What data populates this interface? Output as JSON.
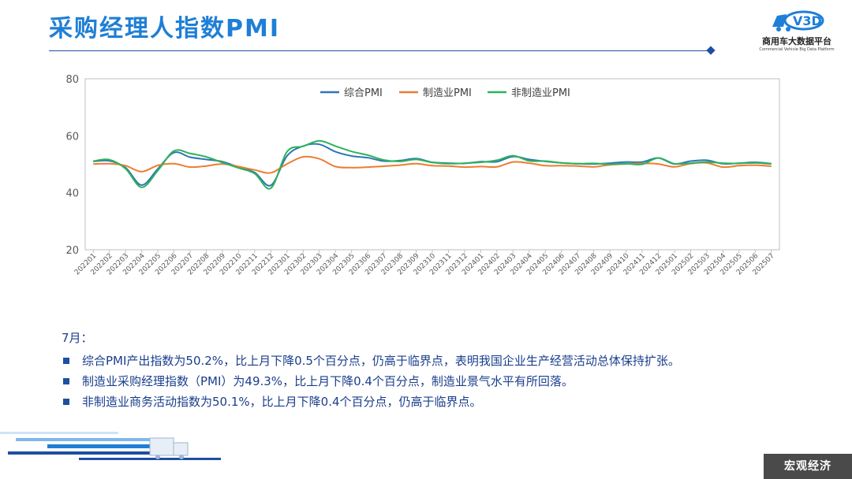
{
  "header": {
    "title": "采购经理人指数PMI",
    "logo_name": "商用车大数据平台",
    "logo_sub": "Commercial Vehicle Big Data Platform"
  },
  "chart_data": {
    "type": "line",
    "title": "",
    "xlabel": "",
    "ylabel": "",
    "ylim": [
      20,
      80
    ],
    "yticks": [
      20,
      40,
      60,
      80
    ],
    "grid": false,
    "legend": "top-center",
    "categories": [
      "202201",
      "202202",
      "202203",
      "202204",
      "202205",
      "202206",
      "202207",
      "202208",
      "202209",
      "202210",
      "202211",
      "202212",
      "202301",
      "202302",
      "202303",
      "202304",
      "202305",
      "202306",
      "202307",
      "202308",
      "202309",
      "202310",
      "202311",
      "202312",
      "202401",
      "202402",
      "202403",
      "202404",
      "202405",
      "202406",
      "202407",
      "202408",
      "202409",
      "202410",
      "202411",
      "202412",
      "202501",
      "202502",
      "202503",
      "202504",
      "202505",
      "202506",
      "202507"
    ],
    "series": [
      {
        "name": "综合PMI",
        "color": "#2e75b6",
        "values": [
          51.0,
          51.2,
          48.8,
          42.7,
          48.4,
          54.1,
          52.5,
          51.7,
          50.9,
          49.0,
          47.1,
          42.6,
          52.9,
          56.4,
          57.0,
          54.4,
          52.9,
          52.3,
          51.1,
          51.3,
          52.0,
          50.7,
          50.4,
          50.3,
          50.9,
          50.9,
          52.7,
          51.7,
          51.0,
          50.5,
          50.2,
          50.1,
          50.4,
          50.8,
          50.8,
          52.2,
          50.1,
          51.1,
          51.4,
          50.2,
          50.4,
          50.7,
          50.2
        ]
      },
      {
        "name": "制造业PMI",
        "color": "#ed7d31",
        "values": [
          50.1,
          50.2,
          49.5,
          47.4,
          49.6,
          50.2,
          49.0,
          49.4,
          50.1,
          49.2,
          48.0,
          47.0,
          50.1,
          52.6,
          51.9,
          49.2,
          48.8,
          49.0,
          49.3,
          49.7,
          50.2,
          49.5,
          49.4,
          49.0,
          49.2,
          49.1,
          50.8,
          50.4,
          49.5,
          49.5,
          49.4,
          49.1,
          49.8,
          50.1,
          50.3,
          50.1,
          49.1,
          50.2,
          50.5,
          49.0,
          49.5,
          49.7,
          49.3
        ]
      },
      {
        "name": "非制造业PMI",
        "color": "#2eb35a",
        "values": [
          51.1,
          51.6,
          48.4,
          41.9,
          47.8,
          54.7,
          53.8,
          52.6,
          50.6,
          48.7,
          46.7,
          41.6,
          54.4,
          56.3,
          58.2,
          56.4,
          54.5,
          53.2,
          51.5,
          51.0,
          51.7,
          50.6,
          50.2,
          50.4,
          50.7,
          51.4,
          53.0,
          51.2,
          51.1,
          50.5,
          50.2,
          50.3,
          50.0,
          50.2,
          50.0,
          52.2,
          50.2,
          50.4,
          50.8,
          50.4,
          50.3,
          50.5,
          50.1
        ]
      }
    ]
  },
  "notes": {
    "month": "7月：",
    "items": [
      "综合PMI产出指数为50.2%，比上月下降0.5个百分点，仍高于临界点，表明我国企业生产经营活动总体保持扩张。",
      "制造业采购经理指数（PMI）为49.3%，比上月下降0.4个百分点，制造业景气水平有所回落。",
      "非制造业商务活动指数为50.1%，比上月下降0.4个百分点，仍高于临界点。"
    ]
  },
  "footer": {
    "badge": "宏观经济"
  }
}
